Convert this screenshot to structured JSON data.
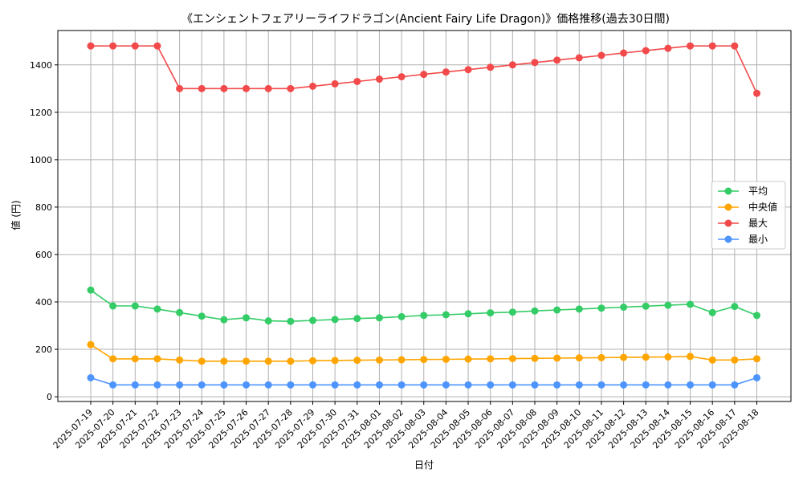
{
  "chart_data": {
    "type": "line",
    "title": "《エンシェントフェアリーライフドラゴン(Ancient Fairy Life Dragon)》価格推移(過去30日間)",
    "xlabel": "日付",
    "ylabel": "値 (円)",
    "ylim": [
      -20,
      1545
    ],
    "yticks": [
      0,
      200,
      400,
      600,
      800,
      1000,
      1200,
      1400
    ],
    "grid": true,
    "legend_position": "center-right",
    "categories": [
      "2025-07-19",
      "2025-07-20",
      "2025-07-21",
      "2025-07-22",
      "2025-07-23",
      "2025-07-24",
      "2025-07-25",
      "2025-07-26",
      "2025-07-27",
      "2025-07-28",
      "2025-07-29",
      "2025-07-30",
      "2025-07-31",
      "2025-08-01",
      "2025-08-02",
      "2025-08-03",
      "2025-08-04",
      "2025-08-05",
      "2025-08-06",
      "2025-08-07",
      "2025-08-08",
      "2025-08-09",
      "2025-08-10",
      "2025-08-11",
      "2025-08-12",
      "2025-08-13",
      "2025-08-14",
      "2025-08-15",
      "2025-08-16",
      "2025-08-17",
      "2025-08-18"
    ],
    "series": [
      {
        "name": "平均",
        "color": "#33cc66",
        "values": [
          450,
          383,
          383,
          370,
          355,
          340,
          325,
          333,
          320,
          318,
          322,
          326,
          330,
          333,
          338,
          343,
          346,
          350,
          354,
          357,
          362,
          366,
          370,
          374,
          378,
          382,
          386,
          390,
          355,
          381,
          343
        ]
      },
      {
        "name": "中央値",
        "color": "#ffa500",
        "values": [
          220,
          160,
          160,
          160,
          155,
          150,
          150,
          150,
          150,
          150,
          152,
          153,
          154,
          155,
          156,
          157,
          158,
          159,
          160,
          161,
          162,
          163,
          164,
          165,
          166,
          167,
          168,
          170,
          155,
          155,
          160
        ]
      },
      {
        "name": "最大",
        "color": "#f24a4a",
        "values": [
          1480,
          1480,
          1480,
          1480,
          1300,
          1300,
          1300,
          1300,
          1300,
          1300,
          1310,
          1320,
          1330,
          1340,
          1350,
          1360,
          1370,
          1380,
          1390,
          1400,
          1410,
          1420,
          1430,
          1440,
          1450,
          1460,
          1470,
          1480,
          1480,
          1480,
          1280
        ]
      },
      {
        "name": "最小",
        "color": "#4d94ff",
        "values": [
          80,
          50,
          50,
          50,
          50,
          50,
          50,
          50,
          50,
          50,
          50,
          50,
          50,
          50,
          50,
          50,
          50,
          50,
          50,
          50,
          50,
          50,
          50,
          50,
          50,
          50,
          50,
          50,
          50,
          50,
          80
        ]
      }
    ]
  }
}
